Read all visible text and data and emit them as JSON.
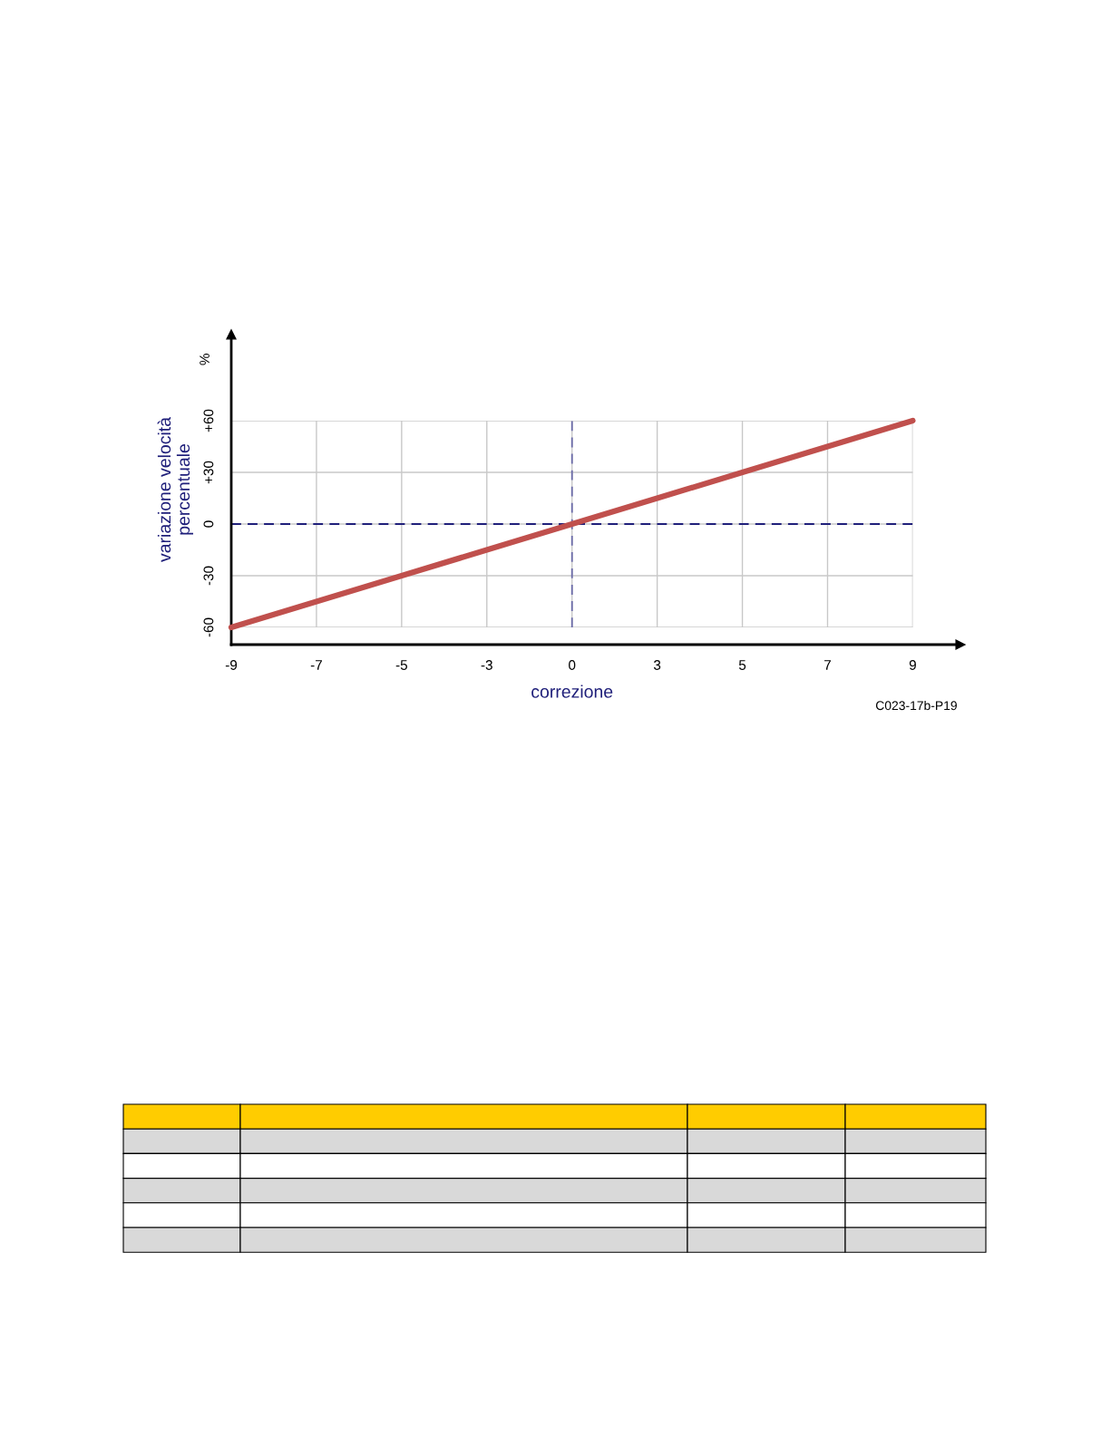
{
  "chart_data": {
    "type": "line",
    "categories": [
      "-9",
      "-7",
      "-5",
      "-3",
      "0",
      "3",
      "5",
      "7",
      "9"
    ],
    "series": [
      {
        "color": "#c0504d",
        "values": [
          -60,
          -45,
          -30,
          -15,
          0,
          15,
          30,
          45,
          60
        ]
      }
    ],
    "xlabel": "correzione",
    "ylabel": "variazione velocità\npercentuale",
    "ylim": [
      -70,
      110
    ],
    "yticks": [
      {
        "value": -60,
        "label": "-60"
      },
      {
        "value": -30,
        "label": "-30"
      },
      0,
      {
        "value": 30,
        "label": "+30"
      },
      {
        "value": 60,
        "label": "+60"
      }
    ],
    "grid": true,
    "marker": "none",
    "line_style": "solid",
    "ref_lines": [
      {
        "axis": "y",
        "value": 0,
        "color": "#1f1f7a",
        "line_style": "dashed"
      },
      {
        "axis": "x",
        "value": "0",
        "color": "#6a6aa8",
        "line_style": "dashed"
      }
    ],
    "annotations": [
      "%",
      "C023-17b-P19"
    ]
  }
}
